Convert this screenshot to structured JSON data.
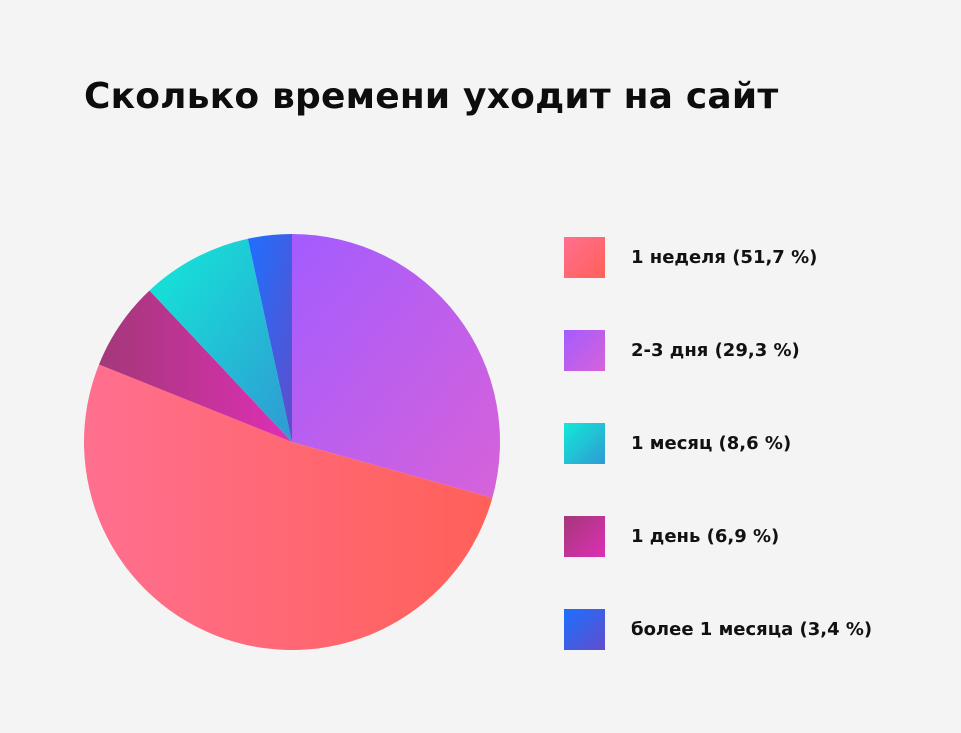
{
  "chart_data": {
    "type": "pie",
    "title": "Сколько времени уходит на сайт",
    "slices": [
      {
        "label": "1 неделя (51,7 %)",
        "value": 51.7,
        "color_from": "#ff6f8f",
        "color_to": "#ff6058"
      },
      {
        "label": "2-3 дня (29,3 %)",
        "value": 29.3,
        "color_from": "#a35cff",
        "color_to": "#d762d9"
      },
      {
        "label": "1 месяц (8,6 %)",
        "value": 8.6,
        "color_from": "#12ead8",
        "color_to": "#3099d3"
      },
      {
        "label": "1 день (6,9 %)",
        "value": 6.9,
        "color_from": "#a33878",
        "color_to": "#de2fb5"
      },
      {
        "label": "более 1 месяца (3,4 %)",
        "value": 3.4,
        "color_from": "#1d70ff",
        "color_to": "#5f4ecb"
      }
    ],
    "legend_position": "right",
    "grid": false
  }
}
